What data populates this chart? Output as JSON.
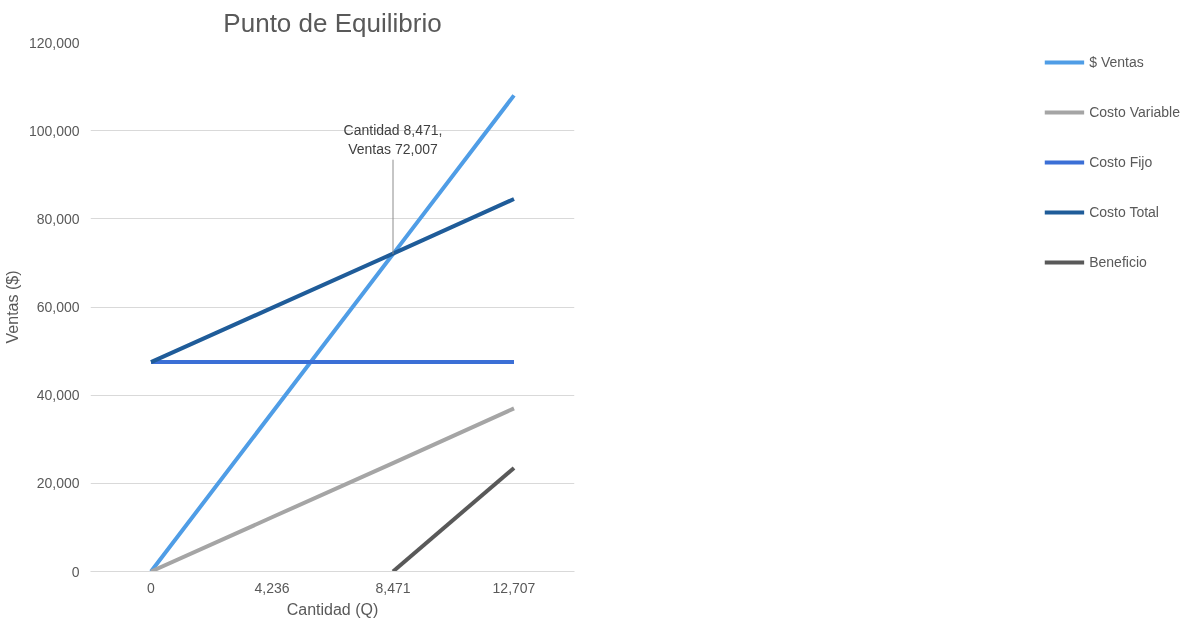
{
  "chart_data": {
    "type": "line",
    "title": "Punto de Equilibrio",
    "xlabel": "Cantidad (Q)",
    "ylabel": "Ventas ($)",
    "categories": [
      "0",
      "4,236",
      "8,471",
      "12,707"
    ],
    "series": [
      {
        "name": "$ Ventas",
        "color": "#4f9de6",
        "values": [
          0,
          36000,
          72000,
          108000
        ]
      },
      {
        "name": "Costo Variable",
        "color": "#a5a5a5",
        "values": [
          0,
          12300,
          24600,
          37000
        ]
      },
      {
        "name": "Costo Fijo",
        "color": "#3b6fd6",
        "values": [
          47500,
          47500,
          47500,
          47500
        ]
      },
      {
        "name": "Costo Total",
        "color": "#1f5c99",
        "values": [
          47500,
          59800,
          72100,
          84500
        ]
      },
      {
        "name": "Beneficio",
        "color": "#595959",
        "values": [
          null,
          null,
          0,
          23500
        ]
      }
    ],
    "ylim": [
      0,
      120000
    ],
    "yticks": [
      {
        "value": 0,
        "label": "0"
      },
      {
        "value": 20000,
        "label": "20,000"
      },
      {
        "value": 40000,
        "label": "40,000"
      },
      {
        "value": 60000,
        "label": "60,000"
      },
      {
        "value": 80000,
        "label": "80,000"
      },
      {
        "value": 100000,
        "label": "100,000"
      },
      {
        "value": 120000,
        "label": "120,000"
      }
    ],
    "grid": "y",
    "legend": "right",
    "marker": "none",
    "line_style": "solid",
    "annotations": [
      {
        "text": "Cantidad 8,471, Ventas 72,007",
        "x": "8,471",
        "y": 72007
      }
    ]
  }
}
